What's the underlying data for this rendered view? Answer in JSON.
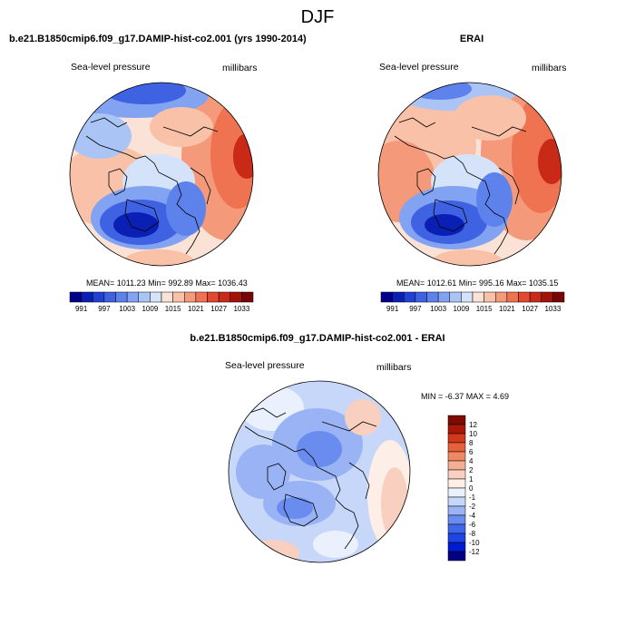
{
  "figure": {
    "title": "DJF"
  },
  "colors": {
    "sequential": [
      "#00008b",
      "#0a1fb4",
      "#2241d4",
      "#3f62e3",
      "#5d82ec",
      "#82a3f2",
      "#abc4f6",
      "#d4e3fa",
      "#fbe2d6",
      "#f8c1a8",
      "#f49a7b",
      "#ef7251",
      "#e4472f",
      "#c92a18",
      "#a2140a",
      "#7a0403"
    ],
    "difference": [
      "#000080",
      "#001ad1",
      "#1f44e6",
      "#4067ea",
      "#6a8cef",
      "#9ab3f4",
      "#c6d7f9",
      "#eaf1fd",
      "#fdeee7",
      "#f9d0bf",
      "#f4ae92",
      "#ef8964",
      "#e6613b",
      "#d1391a",
      "#a8180a",
      "#7c0b02"
    ],
    "coast": "#000000"
  },
  "chart_data": [
    {
      "type": "heatmap",
      "panel": "model",
      "title": "b.e21.B1850cmip6.f09_g17.DAMIP-hist-co2.001 (yrs 1990-2014)",
      "left_label": "Sea-level pressure",
      "right_label": "millibars",
      "projection": "polar-stereographic-north",
      "stats_text": "MEAN= 1011.23  Min= 992.89  Max= 1036.43",
      "mean": 1011.23,
      "min": 992.89,
      "max": 1036.43,
      "colorbar_ticks": [
        "991",
        "997",
        "1003",
        "1009",
        "1015",
        "1021",
        "1027",
        "1033"
      ],
      "colorbar_levels": [
        991,
        994,
        997,
        1000,
        1003,
        1006,
        1009,
        1012,
        1015,
        1018,
        1021,
        1024,
        1027,
        1030,
        1033
      ]
    },
    {
      "type": "heatmap",
      "panel": "observations",
      "title": "ERAI",
      "left_label": "Sea-level pressure",
      "right_label": "millibars",
      "projection": "polar-stereographic-north",
      "stats_text": "MEAN= 1012.61  Min= 995.16  Max= 1035.15",
      "mean": 1012.61,
      "min": 995.16,
      "max": 1035.15,
      "colorbar_ticks": [
        "991",
        "997",
        "1003",
        "1009",
        "1015",
        "1021",
        "1027",
        "1033"
      ],
      "colorbar_levels": [
        991,
        994,
        997,
        1000,
        1003,
        1006,
        1009,
        1012,
        1015,
        1018,
        1021,
        1024,
        1027,
        1030,
        1033
      ]
    },
    {
      "type": "heatmap",
      "panel": "difference",
      "title": "b.e21.B1850cmip6.f09_g17.DAMIP-hist-co2.001 - ERAI",
      "left_label": "Sea-level pressure",
      "right_label": "millibars",
      "projection": "polar-stereographic-north",
      "stats_text": "MIN =  -6.37 MAX =   4.69",
      "min": -6.37,
      "max": 4.69,
      "colorbar_ticks": [
        "12",
        "10",
        "8",
        "6",
        "4",
        "2",
        "1",
        "0",
        "-1",
        "-2",
        "-4",
        "-6",
        "-8",
        "-10",
        "-12"
      ]
    }
  ]
}
